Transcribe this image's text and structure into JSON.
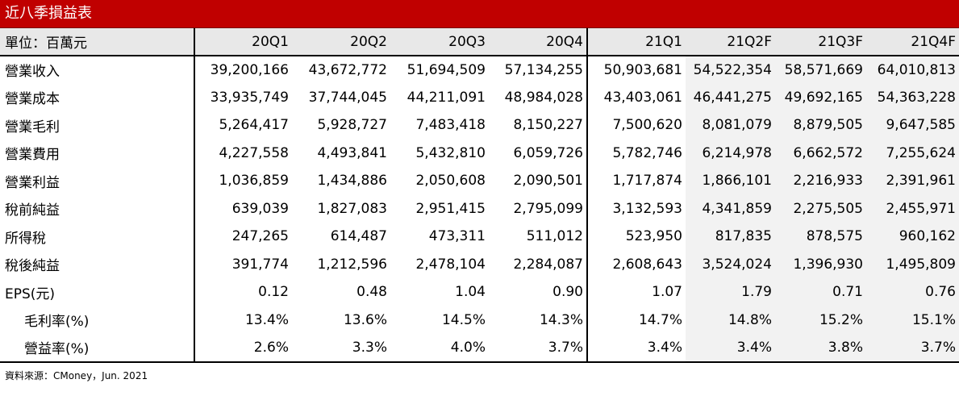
{
  "title": "近八季損益表",
  "table": {
    "unit_label": "單位：百萬元",
    "columns": [
      "20Q1",
      "20Q2",
      "20Q3",
      "20Q4",
      "21Q1",
      "21Q2F",
      "21Q3F",
      "21Q4F"
    ],
    "rows": [
      {
        "label": "營業收入",
        "values": [
          "39,200,166",
          "43,672,772",
          "51,694,509",
          "57,134,255",
          "50,903,681",
          "54,522,354",
          "58,571,669",
          "64,010,813"
        ]
      },
      {
        "label": "營業成本",
        "values": [
          "33,935,749",
          "37,744,045",
          "44,211,091",
          "48,984,028",
          "43,403,061",
          "46,441,275",
          "49,692,165",
          "54,363,228"
        ]
      },
      {
        "label": "營業毛利",
        "values": [
          "5,264,417",
          "5,928,727",
          "7,483,418",
          "8,150,227",
          "7,500,620",
          "8,081,079",
          "8,879,505",
          "9,647,585"
        ]
      },
      {
        "label": "營業費用",
        "values": [
          "4,227,558",
          "4,493,841",
          "5,432,810",
          "6,059,726",
          "5,782,746",
          "6,214,978",
          "6,662,572",
          "7,255,624"
        ]
      },
      {
        "label": "營業利益",
        "values": [
          "1,036,859",
          "1,434,886",
          "2,050,608",
          "2,090,501",
          "1,717,874",
          "1,866,101",
          "2,216,933",
          "2,391,961"
        ]
      },
      {
        "label": "稅前純益",
        "values": [
          "639,039",
          "1,827,083",
          "2,951,415",
          "2,795,099",
          "3,132,593",
          "4,341,859",
          "2,275,505",
          "2,455,971"
        ]
      },
      {
        "label": "所得稅",
        "values": [
          "247,265",
          "614,487",
          "473,311",
          "511,012",
          "523,950",
          "817,835",
          "878,575",
          "960,162"
        ]
      },
      {
        "label": "稅後純益",
        "values": [
          "391,774",
          "1,212,596",
          "2,478,104",
          "2,284,087",
          "2,608,643",
          "3,524,024",
          "1,396,930",
          "1,495,809"
        ]
      },
      {
        "label": "EPS(元)",
        "values": [
          "0.12",
          "0.48",
          "1.04",
          "0.90",
          "1.07",
          "1.79",
          "0.71",
          "0.76"
        ]
      },
      {
        "label": "毛利率(%)",
        "indent": true,
        "values": [
          "13.4%",
          "13.6%",
          "14.5%",
          "14.3%",
          "14.7%",
          "14.8%",
          "15.2%",
          "15.1%"
        ]
      },
      {
        "label": "營益率(%)",
        "indent": true,
        "values": [
          "2.6%",
          "3.3%",
          "4.0%",
          "3.7%",
          "3.4%",
          "3.4%",
          "3.8%",
          "3.7%"
        ]
      }
    ]
  },
  "source_note": "資料來源：CMoney，Jun. 2021",
  "colors": {
    "title_bg": "#c00000",
    "header_bg": "#e8e8e8",
    "forecast_bg": "#f2f2f2"
  }
}
